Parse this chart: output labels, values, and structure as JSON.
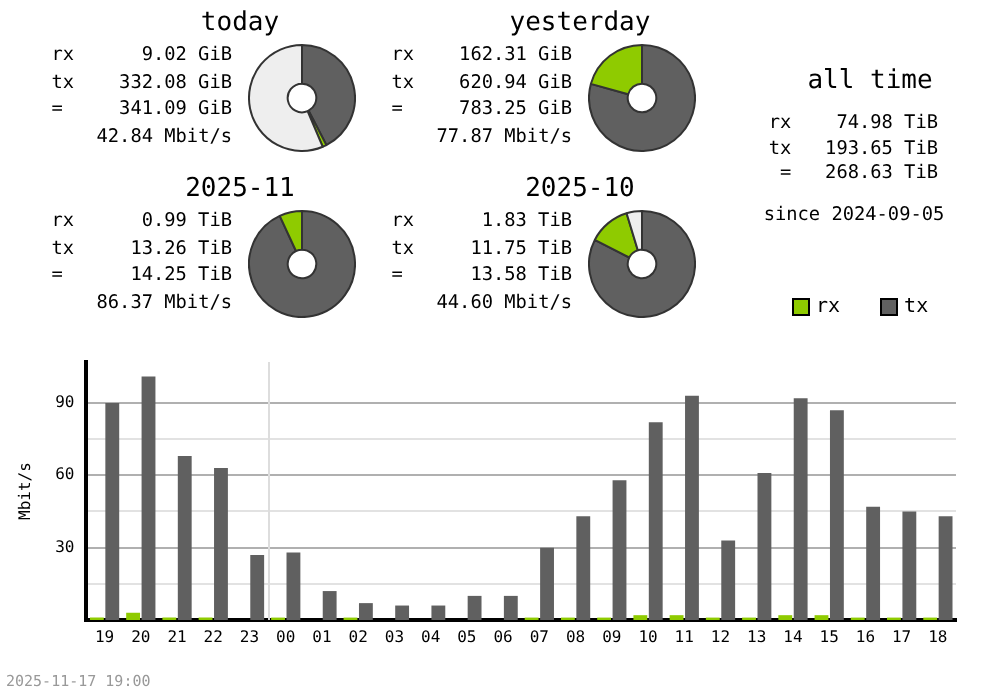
{
  "chart_data": [
    {
      "type": "donut",
      "title": "today",
      "categories": [
        null,
        null,
        null
      ],
      "values": [
        42.4,
        1.2,
        56.4
      ],
      "colors": [
        "#606060",
        "#8fcb00",
        "#eeeeee"
      ],
      "annotations": [
        "rx      9.02 GiB",
        "tx    332.08 GiB",
        "=     341.09 GiB",
        "42.84 Mbit/s"
      ]
    },
    {
      "type": "donut",
      "title": "yesterday",
      "categories": [
        null,
        null
      ],
      "values": [
        79.3,
        20.7
      ],
      "colors": [
        "#606060",
        "#8fcb00"
      ],
      "annotations": [
        "rx    162.31 GiB",
        "tx    620.94 GiB",
        "=     783.25 GiB",
        "77.87 Mbit/s"
      ]
    },
    {
      "type": "donut",
      "title": "2025-11",
      "categories": [
        null,
        null
      ],
      "values": [
        93.1,
        6.9
      ],
      "colors": [
        "#606060",
        "#8fcb00"
      ],
      "annotations": [
        "rx      0.99 TiB",
        "tx     13.26 TiB",
        "=      14.25 TiB",
        "86.37 Mbit/s"
      ]
    },
    {
      "type": "donut",
      "title": "2025-10",
      "categories": [
        null,
        null,
        null
      ],
      "values": [
        82.5,
        12.8,
        4.7
      ],
      "colors": [
        "#606060",
        "#8fcb00",
        "#eeeeee"
      ],
      "annotations": [
        "rx      1.83 TiB",
        "tx     11.75 TiB",
        "=      13.58 TiB",
        "44.60 Mbit/s"
      ]
    },
    {
      "type": "other",
      "title": "all time",
      "annotations": [
        "rx    74.98 TiB",
        "tx   193.65 TiB",
        "=   268.63 TiB",
        "since 2024-09-05"
      ]
    },
    {
      "type": "bar",
      "ylabel": "Mbit/s",
      "categories": [
        "19",
        "20",
        "21",
        "22",
        "23",
        "00",
        "01",
        "02",
        "03",
        "04",
        "05",
        "06",
        "07",
        "08",
        "09",
        "10",
        "11",
        "12",
        "13",
        "14",
        "15",
        "16",
        "17",
        "18"
      ],
      "series": [
        {
          "name": "rx",
          "color": "#8fcb00",
          "values": [
            1,
            3,
            1,
            1,
            0,
            1,
            0,
            1,
            0,
            0,
            0,
            0,
            1,
            1,
            1,
            2,
            2,
            1,
            1,
            2,
            2,
            1,
            1,
            1
          ]
        },
        {
          "name": "tx",
          "color": "#606060",
          "values": [
            90,
            101,
            68,
            63,
            27,
            28,
            12,
            7,
            6,
            6,
            10,
            10,
            30,
            43,
            58,
            82,
            93,
            33,
            61,
            92,
            87,
            47,
            45,
            43
          ]
        }
      ],
      "ylim": [
        0,
        107
      ],
      "yticks": [
        {
          "value": 15,
          "label": null
        },
        30,
        {
          "value": 45,
          "label": null
        },
        60,
        {
          "value": 75,
          "label": null
        },
        90
      ],
      "grid": "y",
      "legend": "top right",
      "ref_lines": [
        {
          "axis": "x",
          "value": "00",
          "color": "#dddddd"
        }
      ],
      "annotations": [
        "2025-11-17 19:00"
      ]
    }
  ]
}
